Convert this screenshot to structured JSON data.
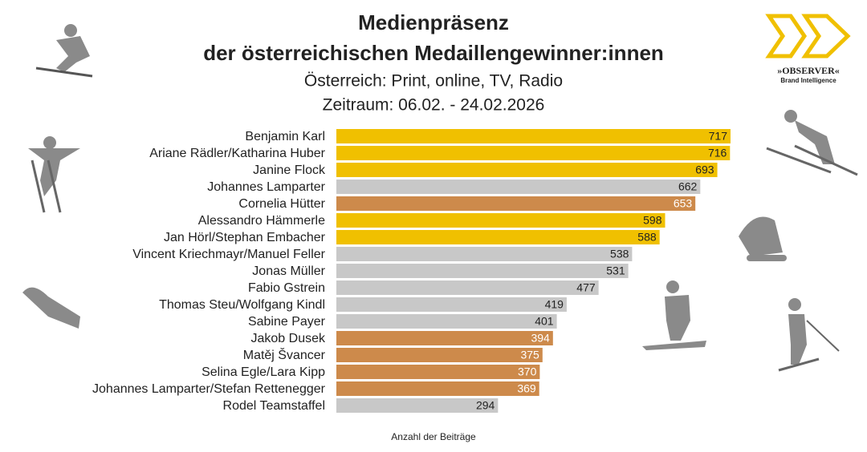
{
  "chart_data": {
    "type": "bar",
    "orientation": "horizontal",
    "title": [
      "Medienpräsenz",
      "der österreichischen Medaillengewinner:innen"
    ],
    "subtitle": [
      "Österreich: Print, online, TV, Radio",
      "Zeitraum: 06.02. - 24.02.2026"
    ],
    "x_label": "Anzahl der Beiträge",
    "categories": [
      "Benjamin Karl",
      "Ariane Rädler/Katharina Huber",
      "Janine Flock",
      "Johannes Lamparter",
      "Cornelia Hütter",
      "Alessandro Hämmerle",
      "Jan Hörl/Stephan Embacher",
      "Vincent Kriechmayr/Manuel Feller",
      "Jonas Müller",
      "Fabio Gstrein",
      "Thomas Steu/Wolfgang Kindl",
      "Sabine Payer",
      "Jakob Dusek",
      "Matěj Švancer",
      "Selina Egle/Lara Kipp",
      "Johannes Lamparter/Stefan Rettenegger",
      "Rodel Teamstaffel"
    ],
    "values": [
      717,
      716,
      693,
      662,
      653,
      598,
      588,
      538,
      531,
      477,
      419,
      401,
      394,
      375,
      370,
      369,
      294
    ],
    "colors": [
      "#f0c000",
      "#f0c000",
      "#f0c000",
      "#c8c8c8",
      "#cd8a4b",
      "#f0c000",
      "#f0c000",
      "#c8c8c8",
      "#c8c8c8",
      "#c8c8c8",
      "#c8c8c8",
      "#c8c8c8",
      "#cd8a4b",
      "#cd8a4b",
      "#cd8a4b",
      "#cd8a4b",
      "#c8c8c8"
    ],
    "show_value_labels": true
  },
  "logo": {
    "name": "»OBSERVER«",
    "tagline": "Brand Intelligence"
  }
}
